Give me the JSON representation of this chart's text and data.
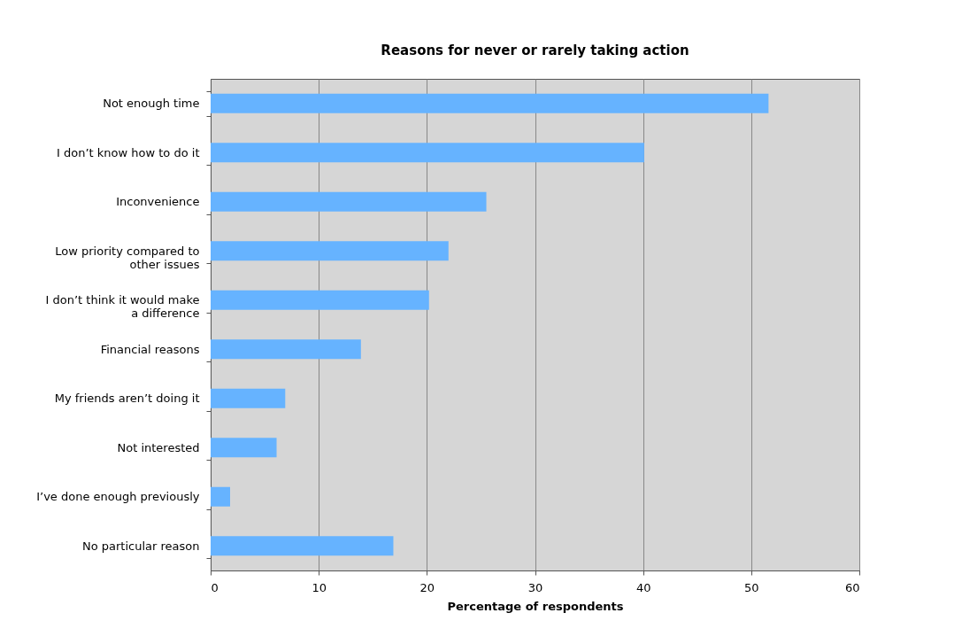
{
  "chart_data": {
    "type": "bar",
    "orientation": "horizontal",
    "title": "Reasons for never or rarely taking action",
    "xlabel": "Percentage of respondents",
    "categories": [
      "Not enough time",
      "I don’t know how to do it",
      "Inconvenience",
      "Low priority compared to other issues",
      "I don’t think it would make a difference",
      "Financial reasons",
      "My friends aren’t doing it",
      "Not interested",
      "I’ve done enough previously",
      "No particular reason"
    ],
    "values": [
      51.6,
      40.1,
      25.5,
      22.0,
      20.2,
      13.9,
      6.9,
      6.1,
      1.8,
      16.9
    ],
    "color": "#66b3ff",
    "xlim": [
      0,
      60
    ],
    "xticks": [
      0,
      10,
      20,
      30,
      40,
      50,
      60
    ],
    "grid": "x"
  }
}
